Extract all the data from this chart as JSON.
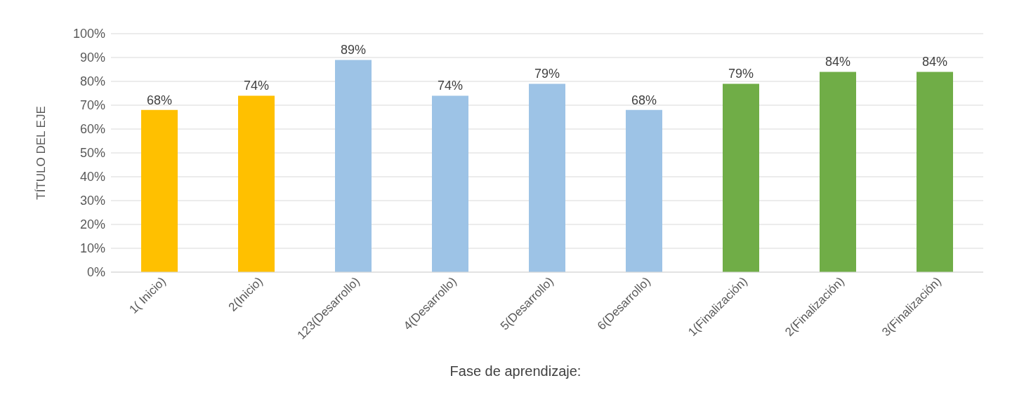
{
  "chart_data": {
    "type": "bar",
    "xlabel": "Fase de aprendizaje:",
    "ylabel": "TÍTULO DEL EJE",
    "categories": [
      "1( Inicio)",
      "2(Inicio)",
      "123(Desarrollo)",
      "4(Desarrollo)",
      "5(Desarrollo)",
      "6(Desarrollo)",
      "1(Finalización)",
      "2(Finalización)",
      "3(Finalización)"
    ],
    "values": [
      68,
      74,
      89,
      74,
      79,
      68,
      79,
      84,
      84
    ],
    "colors": [
      "#ffc000",
      "#ffc000",
      "#9dc3e6",
      "#9dc3e6",
      "#9dc3e6",
      "#9dc3e6",
      "#70ad47",
      "#70ad47",
      "#70ad47"
    ],
    "value_labels": [
      "68%",
      "74%",
      "89%",
      "74%",
      "79%",
      "68%",
      "79%",
      "84%",
      "84%"
    ],
    "ylim": [
      0,
      100
    ],
    "yticks": [
      {
        "value": 0,
        "label": "0%"
      },
      {
        "value": 10,
        "label": "10%"
      },
      {
        "value": 20,
        "label": "20%"
      },
      {
        "value": 30,
        "label": "30%"
      },
      {
        "value": 40,
        "label": "40%"
      },
      {
        "value": 50,
        "label": "50%"
      },
      {
        "value": 60,
        "label": "60%"
      },
      {
        "value": 70,
        "label": "70%"
      },
      {
        "value": 80,
        "label": "80%"
      },
      {
        "value": 90,
        "label": "90%"
      },
      {
        "value": 100,
        "label": "100%"
      }
    ],
    "grid": "y",
    "legend": false
  }
}
